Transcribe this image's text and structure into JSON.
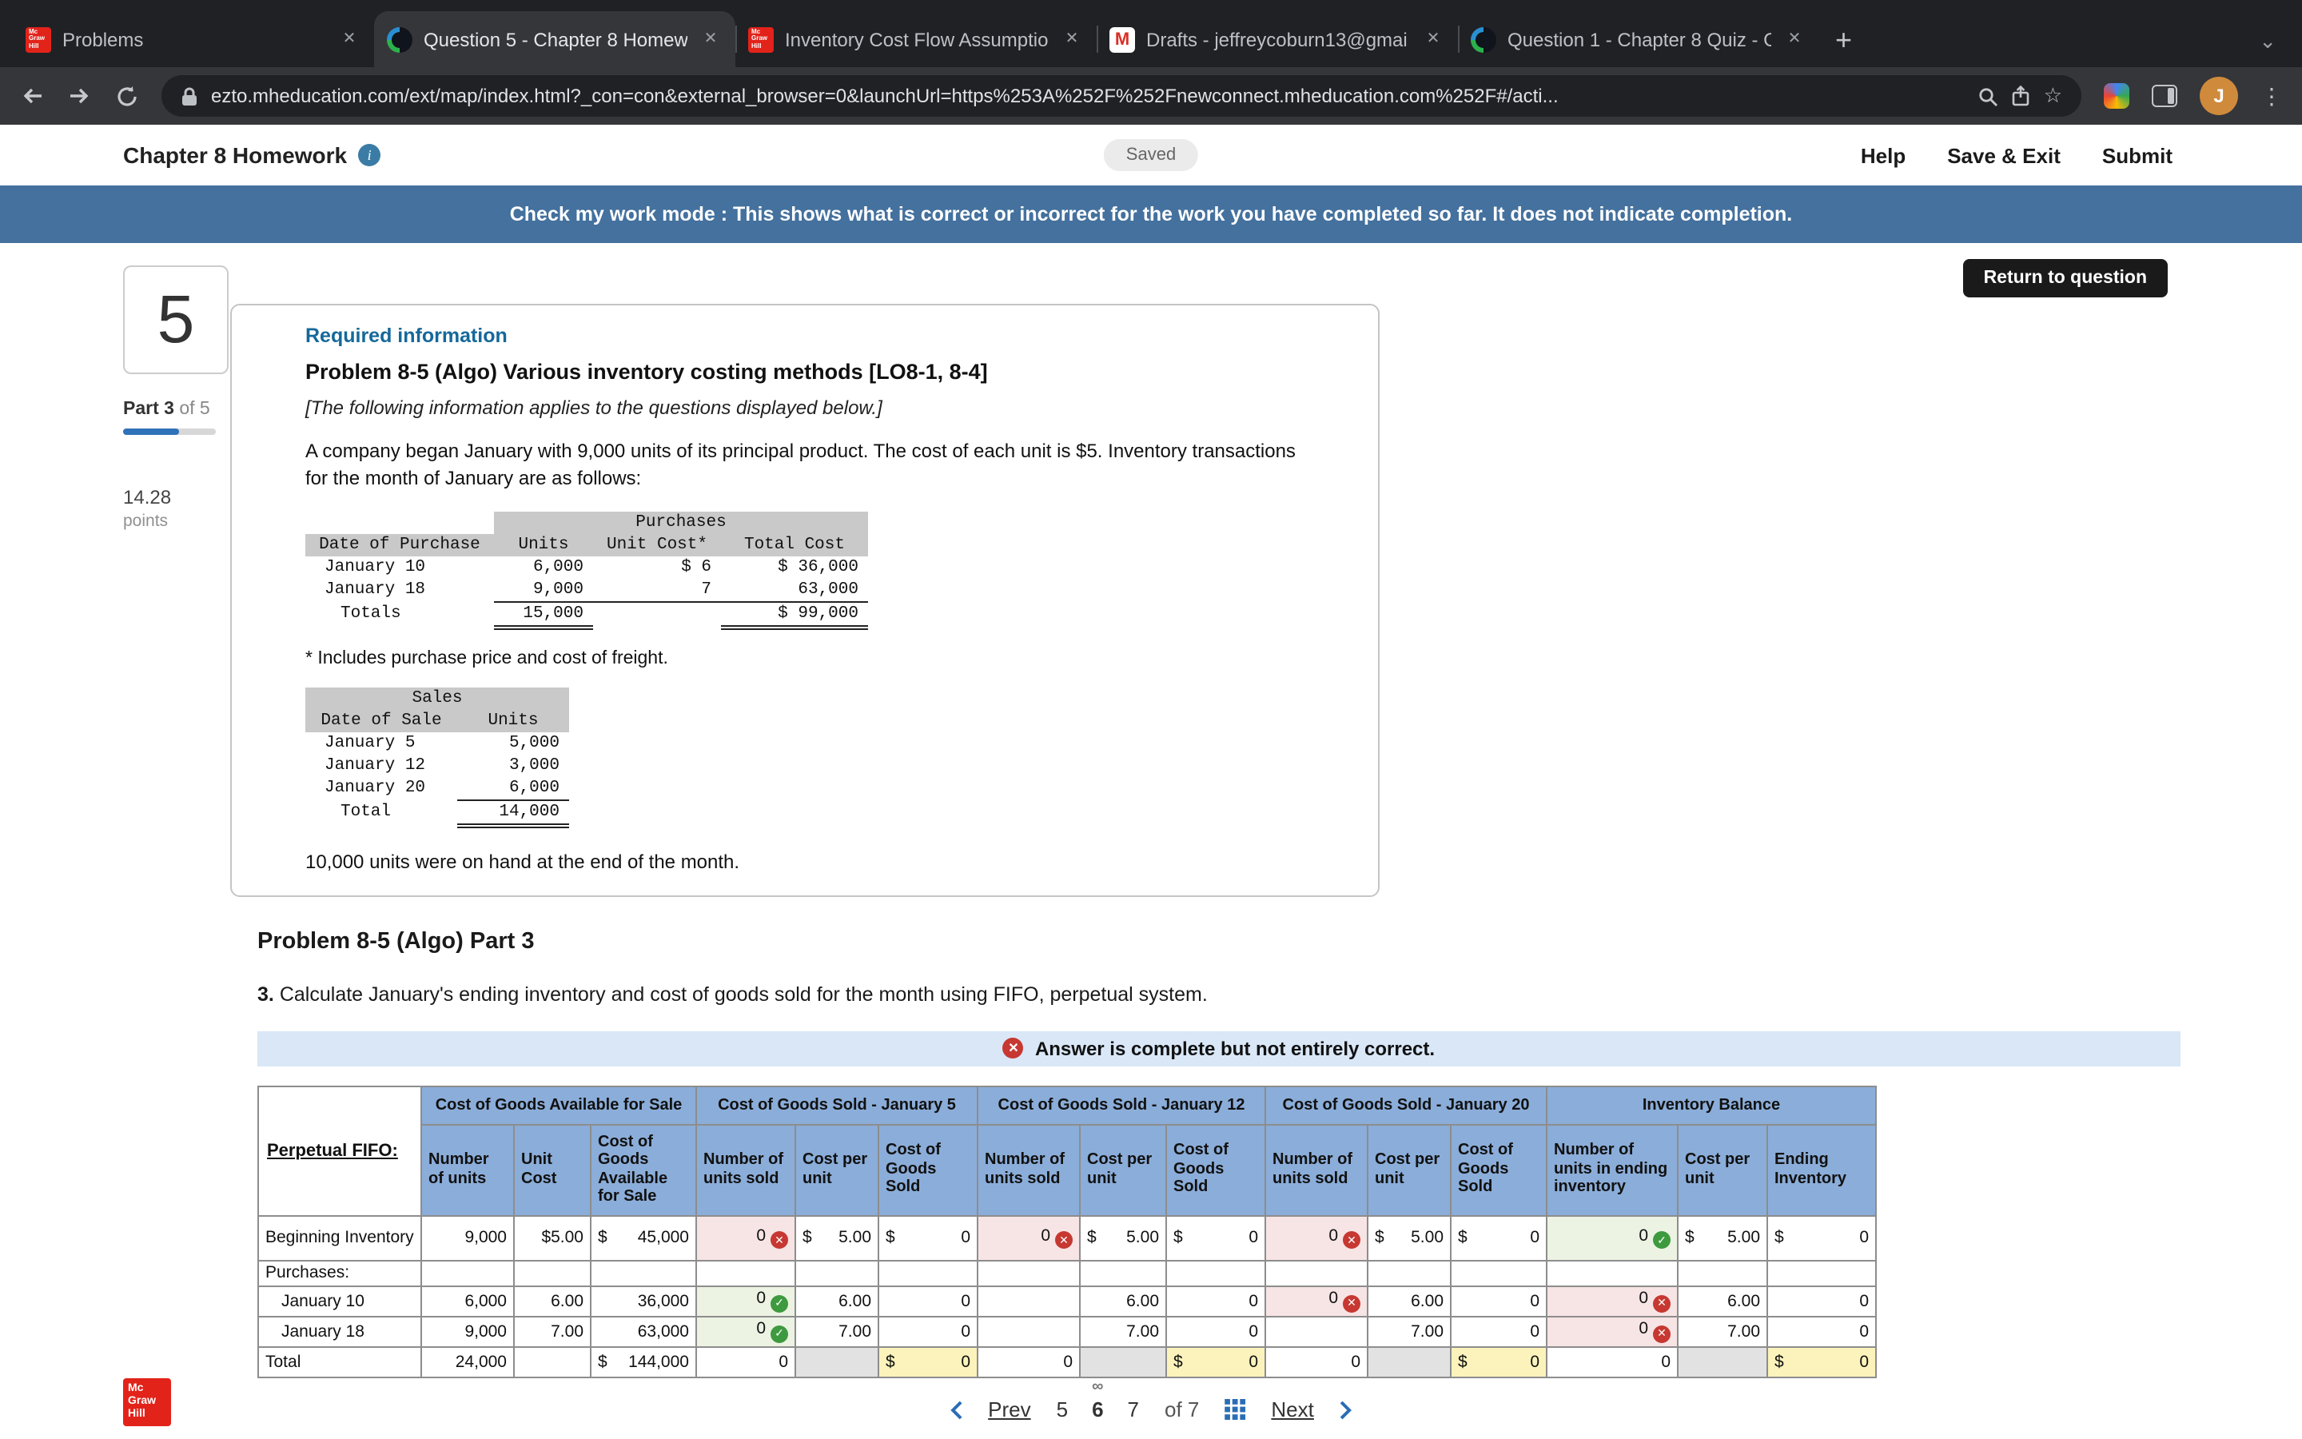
{
  "browser": {
    "tabs": [
      {
        "title": "Problems",
        "icon": "mcgraw-hill",
        "active": false
      },
      {
        "title": "Question 5 - Chapter 8 Homew",
        "icon": "connect",
        "active": true
      },
      {
        "title": "Inventory Cost Flow Assumptio",
        "icon": "mcgraw-hill",
        "active": false
      },
      {
        "title": "Drafts - jeffreycoburn13@gmai",
        "icon": "gmail",
        "active": false
      },
      {
        "title": "Question 1 - Chapter 8 Quiz - C",
        "icon": "connect",
        "active": false
      }
    ],
    "url": "ezto.mheducation.com/ext/map/index.html?_con=con&external_browser=0&launchUrl=https%253A%252F%252Fnewconnect.mheducation.com%252F#/acti...",
    "avatar_initial": "J"
  },
  "header": {
    "title": "Chapter 8 Homework",
    "saved": "Saved",
    "help": "Help",
    "save_exit": "Save & Exit",
    "submit": "Submit"
  },
  "banner": "Check my work mode : This shows what is correct or incorrect for the work you have completed so far. It does not indicate completion.",
  "sidebar": {
    "question_number": "5",
    "part": "Part 3",
    "part_of": "of 5",
    "points": "14.28",
    "points_label": "points"
  },
  "actions": {
    "return_to_question": "Return to question"
  },
  "problem": {
    "required_info": "Required information",
    "title": "Problem 8-5 (Algo) Various inventory costing methods [LO8-1, 8-4]",
    "applies_note": "[The following information applies to the questions displayed below.]",
    "intro": "A company began January with 9,000 units of its principal product. The cost of each unit is $5. Inventory transactions for the month of January are as follows:",
    "freight_note": "* Includes purchase price and cost of freight.",
    "on_hand_note": "10,000 units were on hand at the end of the month.",
    "part_heading": "Problem 8-5 (Algo) Part 3",
    "instruction_no": "3.",
    "instruction": "Calculate January's ending inventory and cost of goods sold for the month using FIFO, perpetual system."
  },
  "purchases_table": {
    "title": "Purchases",
    "title_offset": 1,
    "headers": [
      "Date of Purchase",
      "Units",
      "Unit Cost*",
      "Total Cost"
    ],
    "rows": [
      {
        "cells": [
          "January 10",
          "6,000",
          "$ 6",
          "$ 36,000"
        ],
        "borders": [
          "",
          "",
          "",
          ""
        ]
      },
      {
        "cells": [
          "January 18",
          "9,000",
          "7",
          "63,000"
        ],
        "borders": [
          "",
          "ul",
          "ul",
          "ul"
        ]
      },
      {
        "cells": [
          "Totals",
          "15,000",
          "",
          "$ 99,000"
        ],
        "borders": [
          "",
          "dul",
          "",
          "dul"
        ]
      }
    ]
  },
  "sales_table": {
    "title": "Sales",
    "title_offset": 0,
    "headers": [
      "Date of Sale",
      "Units"
    ],
    "rows": [
      {
        "cells": [
          "January 5",
          "5,000"
        ],
        "borders": [
          "",
          ""
        ]
      },
      {
        "cells": [
          "January 12",
          "3,000"
        ],
        "borders": [
          "",
          ""
        ]
      },
      {
        "cells": [
          "January 20",
          "6,000"
        ],
        "borders": [
          "",
          "ul"
        ]
      },
      {
        "cells": [
          "Total",
          "14,000"
        ],
        "borders": [
          "",
          "dul"
        ]
      }
    ]
  },
  "answer_status": "Answer is complete but not entirely correct.",
  "fifo_table": {
    "corner_label": "Perpetual FIFO:",
    "groups": [
      "Cost of Goods Available for Sale",
      "Cost of Goods Sold - January 5",
      "Cost of Goods Sold - January 12",
      "Cost of Goods Sold - January 20",
      "Inventory Balance"
    ],
    "subheaders": [
      "Number of units",
      "Unit Cost",
      "Cost of Goods Available for Sale",
      "Number of units sold",
      "Cost per unit",
      "Cost of Goods Sold",
      "Number of units sold",
      "Cost per unit",
      "Cost of Goods Sold",
      "Number of units sold",
      "Cost per unit",
      "Cost of Goods Sold",
      "Number of units in ending inventory",
      "Cost per unit",
      "Ending Inventory"
    ],
    "rows": [
      {
        "label": "Beginning Inventory",
        "indent": false,
        "cells": [
          {
            "t": "9,000"
          },
          {
            "t": "$5.00"
          },
          {
            "t": "45,000",
            "p": "$"
          },
          {
            "t": "0",
            "m": "x",
            "hl": "r"
          },
          {
            "t": "5.00",
            "p": "$"
          },
          {
            "t": "0",
            "p": "$"
          },
          {
            "t": "0",
            "m": "x",
            "hl": "r"
          },
          {
            "t": "5.00",
            "p": "$"
          },
          {
            "t": "0",
            "p": "$"
          },
          {
            "t": "0",
            "m": "x",
            "hl": "r"
          },
          {
            "t": "5.00",
            "p": "$"
          },
          {
            "t": "0",
            "p": "$"
          },
          {
            "t": "0",
            "m": "c",
            "hl": "g"
          },
          {
            "t": "5.00",
            "p": "$"
          },
          {
            "t": "0",
            "p": "$"
          }
        ]
      },
      {
        "label": "Purchases:",
        "indent": false,
        "cells": [
          {
            "t": ""
          },
          {
            "t": ""
          },
          {
            "t": ""
          },
          {
            "t": ""
          },
          {
            "t": ""
          },
          {
            "t": ""
          },
          {
            "t": ""
          },
          {
            "t": ""
          },
          {
            "t": ""
          },
          {
            "t": ""
          },
          {
            "t": ""
          },
          {
            "t": ""
          },
          {
            "t": ""
          },
          {
            "t": ""
          },
          {
            "t": ""
          }
        ]
      },
      {
        "label": "January 10",
        "indent": true,
        "cells": [
          {
            "t": "6,000"
          },
          {
            "t": "6.00"
          },
          {
            "t": "36,000"
          },
          {
            "t": "0",
            "m": "c",
            "hl": "g"
          },
          {
            "t": "6.00"
          },
          {
            "t": "0"
          },
          {
            "t": ""
          },
          {
            "t": "6.00"
          },
          {
            "t": "0"
          },
          {
            "t": "0",
            "m": "x",
            "hl": "r"
          },
          {
            "t": "6.00"
          },
          {
            "t": "0"
          },
          {
            "t": "0",
            "m": "x",
            "hl": "r"
          },
          {
            "t": "6.00"
          },
          {
            "t": "0"
          }
        ]
      },
      {
        "label": "January 18",
        "indent": true,
        "cells": [
          {
            "t": "9,000"
          },
          {
            "t": "7.00"
          },
          {
            "t": "63,000"
          },
          {
            "t": "0",
            "m": "c",
            "hl": "g"
          },
          {
            "t": "7.00"
          },
          {
            "t": "0"
          },
          {
            "t": ""
          },
          {
            "t": "7.00"
          },
          {
            "t": "0"
          },
          {
            "t": ""
          },
          {
            "t": "7.00"
          },
          {
            "t": "0"
          },
          {
            "t": "0",
            "m": "x",
            "hl": "r"
          },
          {
            "t": "7.00"
          },
          {
            "t": "0"
          }
        ]
      },
      {
        "label": "Total",
        "indent": false,
        "cells": [
          {
            "t": "24,000"
          },
          {
            "t": ""
          },
          {
            "t": "144,000",
            "p": "$"
          },
          {
            "t": "0"
          },
          {
            "t": "",
            "hl": "d"
          },
          {
            "t": "0",
            "p": "$",
            "hl": "y"
          },
          {
            "t": "0"
          },
          {
            "t": "",
            "hl": "d"
          },
          {
            "t": "0",
            "p": "$",
            "hl": "y"
          },
          {
            "t": "0"
          },
          {
            "t": "",
            "hl": "d"
          },
          {
            "t": "0",
            "p": "$",
            "hl": "y"
          },
          {
            "t": "0"
          },
          {
            "t": "",
            "hl": "d"
          },
          {
            "t": "0",
            "p": "$",
            "hl": "y"
          }
        ]
      }
    ]
  },
  "pagination": {
    "prev": "Prev",
    "pages": [
      "5",
      "6",
      "7"
    ],
    "current": "6",
    "of_label": "of 7",
    "next": "Next"
  },
  "footer_logo": [
    "Mc",
    "Graw",
    "Hill"
  ]
}
